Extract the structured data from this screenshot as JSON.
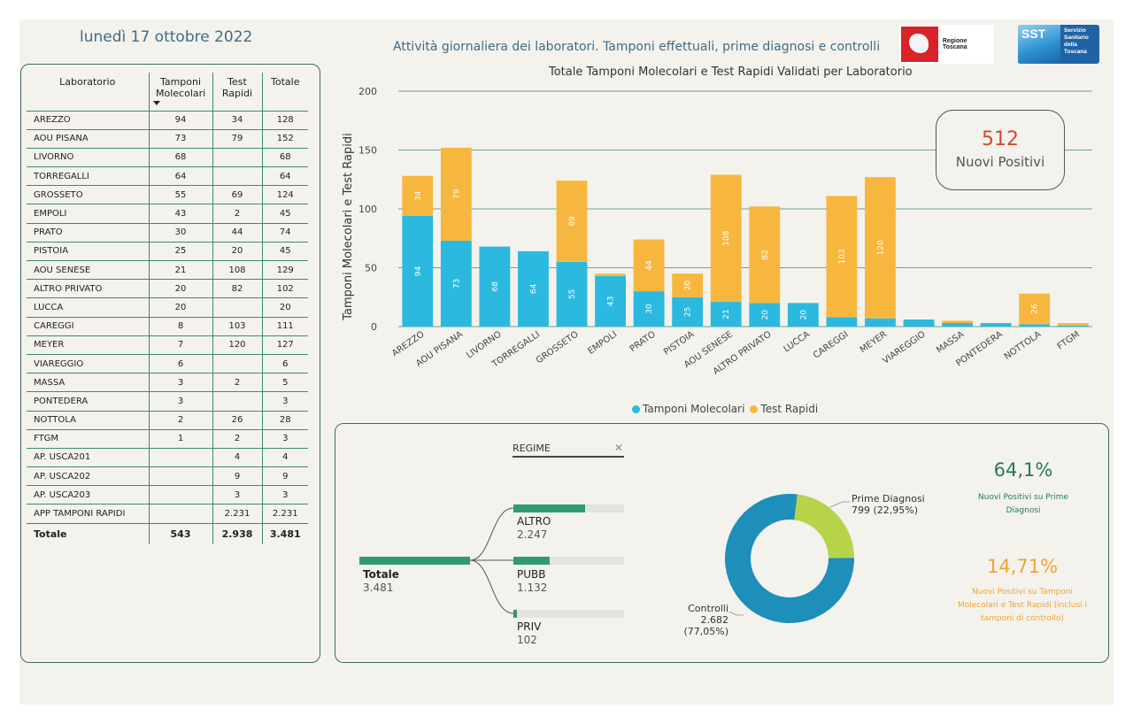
{
  "header": {
    "date": "lunedì 17 ottobre 2022",
    "subtitle": "Attività giornaliera dei laboratori. Tamponi effettuali, prime diagnosi e controlli",
    "logo_rt": "Regione Toscana",
    "logo_sst_short": "SST",
    "logo_sst": "Servizio Sanitario della Toscana"
  },
  "table": {
    "headers": [
      "Laboratorio",
      "Tamponi Molecolari",
      "Test Rapidi",
      "Totale"
    ],
    "rows": [
      [
        "AREZZO",
        "94",
        "34",
        "128"
      ],
      [
        "AOU PISANA",
        "73",
        "79",
        "152"
      ],
      [
        "LIVORNO",
        "68",
        "",
        "68"
      ],
      [
        "TORREGALLI",
        "64",
        "",
        "64"
      ],
      [
        "GROSSETO",
        "55",
        "69",
        "124"
      ],
      [
        "EMPOLI",
        "43",
        "2",
        "45"
      ],
      [
        "PRATO",
        "30",
        "44",
        "74"
      ],
      [
        "PISTOIA",
        "25",
        "20",
        "45"
      ],
      [
        "AOU SENESE",
        "21",
        "108",
        "129"
      ],
      [
        "ALTRO PRIVATO",
        "20",
        "82",
        "102"
      ],
      [
        "LUCCA",
        "20",
        "",
        "20"
      ],
      [
        "CAREGGI",
        "8",
        "103",
        "111"
      ],
      [
        "MEYER",
        "7",
        "120",
        "127"
      ],
      [
        "VIAREGGIO",
        "6",
        "",
        "6"
      ],
      [
        "MASSA",
        "3",
        "2",
        "5"
      ],
      [
        "PONTEDERA",
        "3",
        "",
        "3"
      ],
      [
        "NOTTOLA",
        "2",
        "26",
        "28"
      ],
      [
        "FTGM",
        "1",
        "2",
        "3"
      ],
      [
        "AP. USCA201",
        "",
        "4",
        "4"
      ],
      [
        "AP. USCA202",
        "",
        "9",
        "9"
      ],
      [
        "AP. USCA203",
        "",
        "3",
        "3"
      ],
      [
        "APP TAMPONI RAPIDI",
        "",
        "2.231",
        "2.231"
      ]
    ],
    "total": [
      "Totale",
      "543",
      "2.938",
      "3.481"
    ]
  },
  "chart_data": [
    {
      "type": "bar",
      "stacked": true,
      "title": "Totale Tamponi Molecolari e Test Rapidi Validati per Laboratorio",
      "ylabel": "Tamponi Molecolari e Test Rapidi",
      "ylim": [
        0,
        200
      ],
      "yticks": [
        0,
        50,
        100,
        150,
        200
      ],
      "grid": true,
      "legend_position": "bottom",
      "categories": [
        "AREZZO",
        "AOU PISANA",
        "LIVORNO",
        "TORREGALLI",
        "GROSSETO",
        "EMPOLI",
        "PRATO",
        "PISTOIA",
        "AOU SENESE",
        "ALTRO PRIVATO",
        "LUCCA",
        "CAREGGI",
        "MEYER",
        "VIAREGGIO",
        "MASSA",
        "PONTEDERA",
        "NOTTOLA",
        "FTGM"
      ],
      "series": [
        {
          "name": "Tamponi Molecolari",
          "color": "#2bb9e0",
          "values": [
            94,
            73,
            68,
            64,
            55,
            43,
            30,
            25,
            21,
            20,
            20,
            8,
            7,
            6,
            3,
            3,
            2,
            1
          ]
        },
        {
          "name": "Test Rapidi",
          "color": "#f7b73f",
          "values": [
            34,
            79,
            0,
            0,
            69,
            2,
            44,
            20,
            108,
            82,
            0,
            103,
            120,
            0,
            2,
            0,
            26,
            2
          ]
        }
      ]
    },
    {
      "type": "pie",
      "donut": true,
      "slices": [
        {
          "name": "Prime Diagnosi",
          "value": 799,
          "percent": 22.95,
          "label": "799 (22,95%)",
          "color": "#b6d34a"
        },
        {
          "name": "Controlli",
          "value": 2682,
          "percent": 77.05,
          "label": "2.682 (77,05%)",
          "color": "#1e8eba"
        }
      ]
    }
  ],
  "kpi_card": {
    "value": "512",
    "label": "Nuovi Positivi"
  },
  "decomp": {
    "filter_label": "REGIME",
    "close_icon": "close-icon",
    "root": {
      "name": "Totale",
      "value": "3.481",
      "fraction": 1.0
    },
    "children": [
      {
        "name": "ALTRO",
        "value": "2.247",
        "fraction": 0.6455
      },
      {
        "name": "PUBB",
        "value": "1.132",
        "fraction": 0.3252
      },
      {
        "name": "PRIV",
        "value": "102",
        "fraction": 0.0293
      }
    ]
  },
  "kpis": [
    {
      "value": "64,1%",
      "description": "Nuovi Positivi su Prime Diagnosi",
      "color": "#237a57"
    },
    {
      "value": "14,71%",
      "description": "Nuovi Positivi su Tamponi Molecolari e Test Rapidi (inclusi i tamponi di controllo)",
      "color": "#f0a330"
    }
  ],
  "colors": {
    "accent_green": "#3a8c6c",
    "title_blue": "#3f6c82",
    "kpi_red": "#d2492a"
  }
}
